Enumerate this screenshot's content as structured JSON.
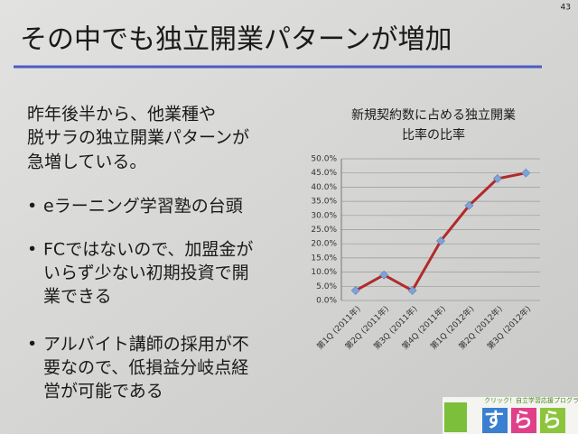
{
  "page_number": "43",
  "title": "その中でも独立開業パターンが増加",
  "intro": [
    "昨年後半から、他業種や",
    "脱サラの独立開業パターンが",
    "急増している。"
  ],
  "bullets": [
    [
      "eラーニング学習塾の台頭"
    ],
    [
      "FCではないので、加盟金が",
      "いらず少ない初期投資で開",
      "業できる"
    ],
    [
      "アルバイト講師の採用が不",
      "要なので、低損益分岐点経",
      "営が可能である"
    ]
  ],
  "logo": {
    "tagline": "クリック！自立学習応援プログラム",
    "name": "すらら"
  },
  "chart_data": {
    "type": "line",
    "title": [
      "新規契約数に占める独立開業",
      "比率の比率"
    ],
    "categories": [
      "第1Q (2011年)",
      "第2Q (2011年)",
      "第3Q (2011年)",
      "第4Q (2011年)",
      "第1Q (2012年)",
      "第2Q (2012年)",
      "第3Q (2012年)"
    ],
    "values": [
      3.5,
      9,
      3.5,
      21,
      33.5,
      43,
      45
    ],
    "color": "#b22a2a",
    "marker_color": "#7fa3d6",
    "ylim": [
      0,
      50
    ],
    "yticks": [
      {
        "value": 0,
        "label": "0.0%"
      },
      {
        "value": 5,
        "label": "5.0%"
      },
      {
        "value": 10,
        "label": "10.0%"
      },
      {
        "value": 15,
        "label": "15.0%"
      },
      {
        "value": 20,
        "label": "20.0%"
      },
      {
        "value": 25,
        "label": "25.0%"
      },
      {
        "value": 30,
        "label": "30.0%"
      },
      {
        "value": 35,
        "label": "35.0%"
      },
      {
        "value": 40,
        "label": "40.0%"
      },
      {
        "value": 45,
        "label": "45.0%"
      },
      {
        "value": 50,
        "label": "50.0%"
      }
    ],
    "grid": true
  }
}
